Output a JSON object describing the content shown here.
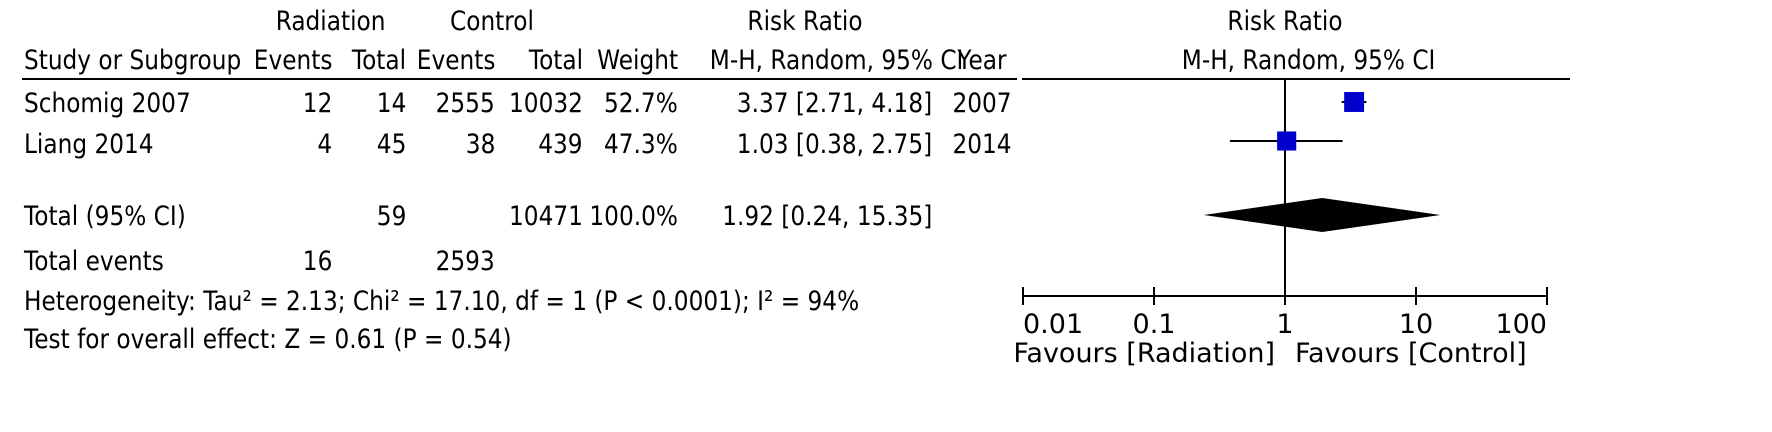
{
  "header": {
    "group1": "Radiation",
    "group2": "Control",
    "rr_title_table": "Risk Ratio",
    "rr_title_plot": "Risk Ratio",
    "study_col": "Study or Subgroup",
    "events1": "Events",
    "total1": "Total",
    "events2": "Events",
    "total2": "Total",
    "weight": "Weight",
    "method_table": "M-H, Random, 95% CI",
    "year": "Year",
    "method_plot": "M-H, Random, 95% CI"
  },
  "studies": [
    {
      "name": "Schomig 2007",
      "events1": "12",
      "total1": "14",
      "events2": "2555",
      "total2": "10032",
      "weight": "52.7%",
      "ci": "3.37 [2.71, 4.18]",
      "year": "2007"
    },
    {
      "name": "Liang 2014",
      "events1": "4",
      "total1": "45",
      "events2": "38",
      "total2": "439",
      "weight": "47.3%",
      "ci": "1.03 [0.38, 2.75]",
      "year": "2014"
    }
  ],
  "total": {
    "label": "Total (95% CI)",
    "total1": "59",
    "total2": "10471",
    "weight": "100.0%",
    "ci": "1.92 [0.24, 15.35]"
  },
  "total_events": {
    "label": "Total events",
    "events1": "16",
    "events2": "2593"
  },
  "footer": {
    "heterogeneity": "Heterogeneity: Tau² = 2.13; Chi² = 17.10, df = 1 (P < 0.0001); I² = 94%",
    "overall": "Test for overall effect: Z = 0.61 (P = 0.54)"
  },
  "chart_data": {
    "type": "forest",
    "x_scale": "log",
    "xlim": [
      0.01,
      100
    ],
    "tick_labels": [
      "0.01",
      "0.1",
      "1",
      "10",
      "100"
    ],
    "ticks": [
      0.01,
      0.1,
      1,
      10,
      100
    ],
    "null_line": 1,
    "favours_left": "Favours [Radiation]",
    "favours_right": "Favours [Control]",
    "studies": [
      {
        "estimate": 3.37,
        "lower": 2.71,
        "upper": 4.18,
        "weight": 52.7
      },
      {
        "estimate": 1.03,
        "lower": 0.38,
        "upper": 2.75,
        "weight": 47.3
      }
    ],
    "pooled": {
      "estimate": 1.92,
      "lower": 0.24,
      "upper": 15.35
    },
    "colors": {
      "marker": "#0000cc",
      "diamond": "#000000",
      "axis": "#000000"
    }
  }
}
